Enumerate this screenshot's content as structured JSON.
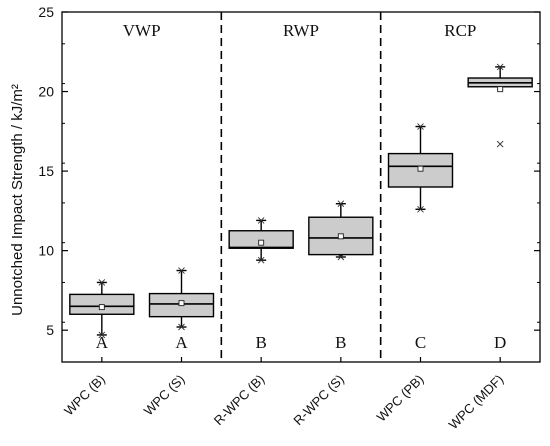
{
  "chart_data": {
    "type": "box",
    "ylabel": "Unnotched Impact Strength  / kJ/m²",
    "ylim": [
      3,
      25
    ],
    "yticks": [
      5,
      10,
      15,
      20,
      25
    ],
    "categories": [
      "WPC (B)",
      "WPC (S)",
      "R-WPC (B)",
      "R-WPC (S)",
      "WPC (PB)",
      "WPC (MDF)"
    ],
    "groups": [
      {
        "label": "VWP",
        "categories": [
          "WPC (B)",
          "WPC (S)"
        ]
      },
      {
        "label": "RWP",
        "categories": [
          "R-WPC (B)",
          "R-WPC (S)"
        ]
      },
      {
        "label": "RCP",
        "categories": [
          "WPC (PB)",
          "WPC (MDF)"
        ]
      }
    ],
    "boxes": [
      {
        "category": "WPC (B)",
        "min": 4.7,
        "q1": 6.0,
        "median": 6.5,
        "q3": 7.25,
        "max": 8.0,
        "mean": 6.45,
        "outliers": [],
        "letter": "A"
      },
      {
        "category": "WPC (S)",
        "min": 5.2,
        "q1": 5.85,
        "median": 6.65,
        "q3": 7.3,
        "max": 8.75,
        "mean": 6.7,
        "outliers": [],
        "letter": "A"
      },
      {
        "category": "R-WPC (B)",
        "min": 9.4,
        "q1": 10.15,
        "median": 10.2,
        "q3": 11.25,
        "max": 11.9,
        "mean": 10.5,
        "outliers": [],
        "letter": "B"
      },
      {
        "category": "R-WPC (S)",
        "min": 9.6,
        "q1": 9.75,
        "median": 10.8,
        "q3": 12.1,
        "max": 12.95,
        "mean": 10.9,
        "outliers": [],
        "letter": "B"
      },
      {
        "category": "WPC (PB)",
        "min": 12.6,
        "q1": 14.0,
        "median": 15.3,
        "q3": 16.1,
        "max": 17.8,
        "mean": 15.15,
        "outliers": [],
        "letter": "C"
      },
      {
        "category": "WPC (MDF)",
        "min": 20.3,
        "q1": 20.3,
        "median": 20.55,
        "q3": 20.85,
        "max": 21.55,
        "mean": 20.15,
        "outliers": [
          16.7
        ],
        "letter": "D"
      }
    ],
    "box_fill": "#cccccc",
    "line_color": "#000000",
    "legend": "none",
    "grid": false
  }
}
